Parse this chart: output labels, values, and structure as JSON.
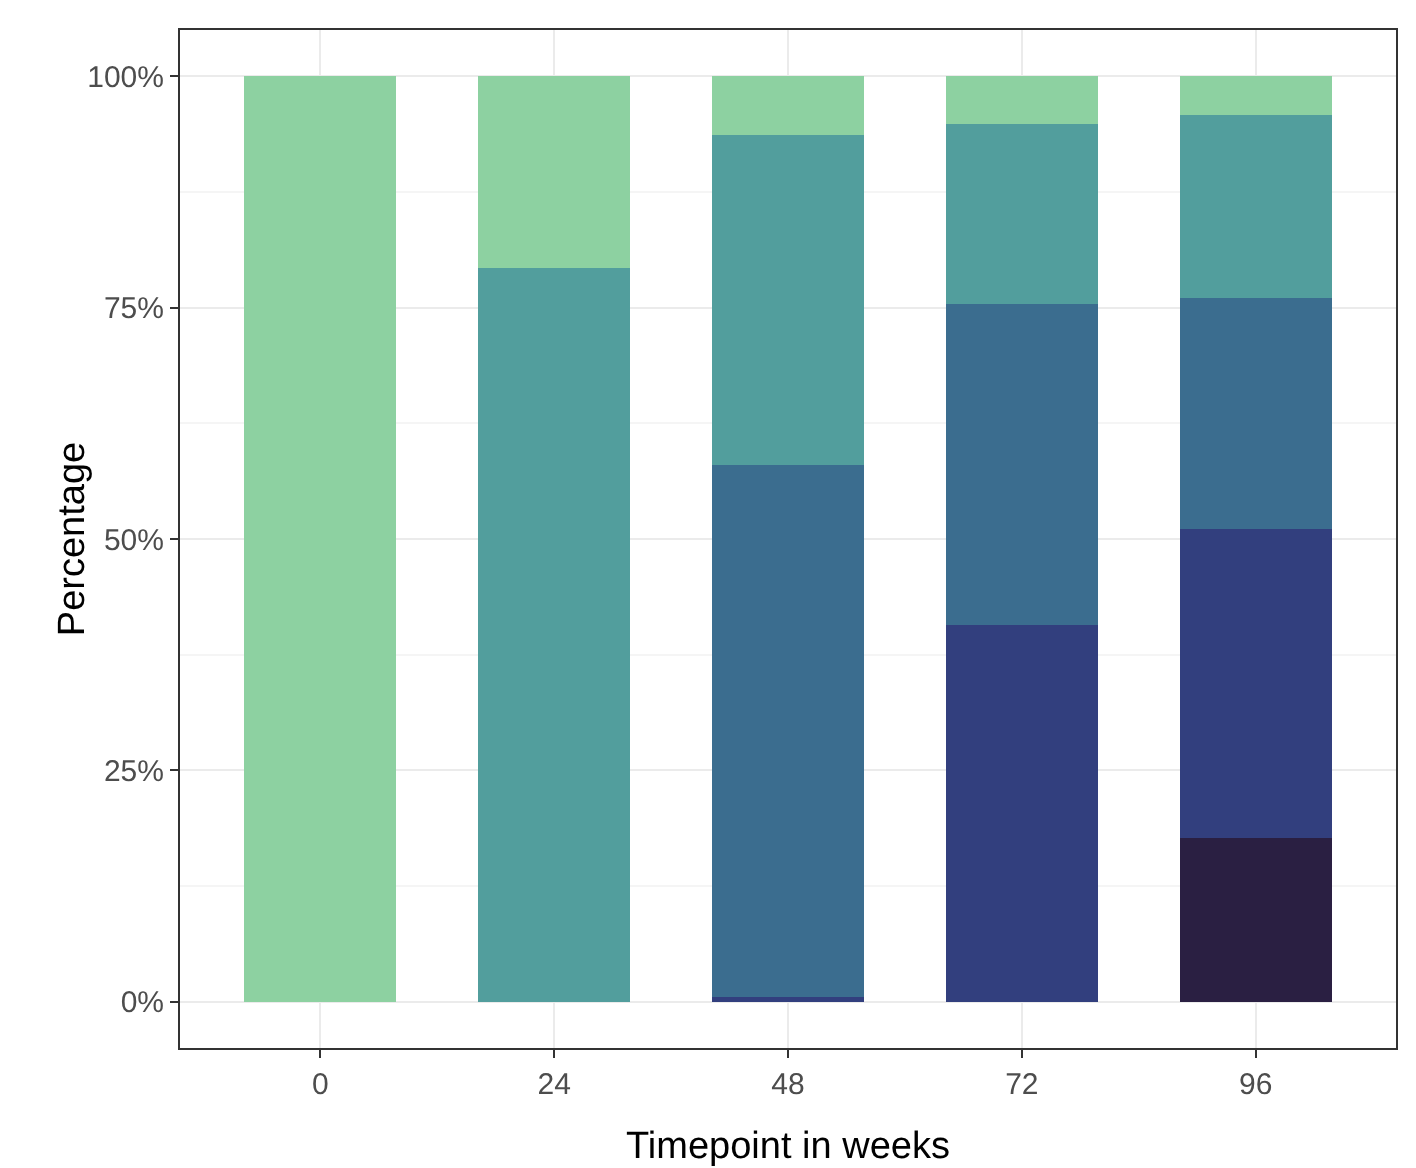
{
  "chart_data": {
    "type": "bar",
    "stacked": true,
    "xlabel": "Timepoint in weeks",
    "ylabel": "Percentage",
    "categories": [
      "0",
      "24",
      "48",
      "72",
      "96"
    ],
    "series": [
      {
        "color": "#2a1f42",
        "values": [
          0,
          0,
          0,
          0,
          17.7
        ]
      },
      {
        "color": "#323f7e",
        "values": [
          0,
          0,
          0.5,
          40.7,
          33.4
        ]
      },
      {
        "color": "#3b6d8f",
        "values": [
          0,
          0,
          57.5,
          34.7,
          24.9
        ]
      },
      {
        "color": "#529e9d",
        "values": [
          0,
          79.3,
          35.7,
          19.4,
          19.8
        ]
      },
      {
        "color": "#8dd1a1",
        "values": [
          100,
          20.7,
          6.3,
          5.2,
          4.2
        ]
      }
    ],
    "ylim": [
      -5,
      105
    ],
    "yticks": [
      {
        "value": 0,
        "label": "0%"
      },
      {
        "value": 25,
        "label": "25%"
      },
      {
        "value": 50,
        "label": "50%"
      },
      {
        "value": 75,
        "label": "75%"
      },
      {
        "value": 100,
        "label": "100%"
      }
    ],
    "grid": true
  }
}
